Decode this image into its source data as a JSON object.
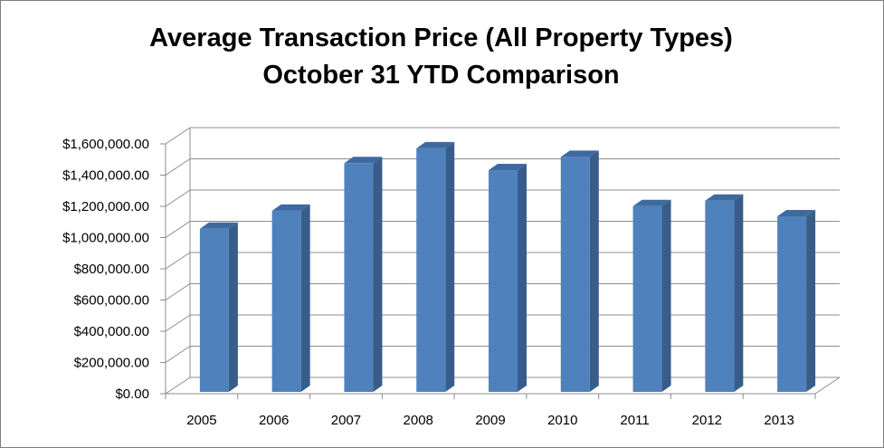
{
  "chart_data": {
    "type": "bar",
    "title": "Average Transaction Price (All Property Types)",
    "subtitle": "October 31 YTD Comparison",
    "categories": [
      "2005",
      "2006",
      "2007",
      "2008",
      "2009",
      "2010",
      "2011",
      "2012",
      "2013"
    ],
    "series": [
      {
        "values": [
          1045000,
          1160000,
          1465000,
          1560000,
          1420000,
          1505000,
          1190000,
          1225000,
          1125000
        ]
      }
    ],
    "ylim": [
      0,
      1600000
    ],
    "yticks": [
      0,
      200000,
      400000,
      600000,
      800000,
      1000000,
      1200000,
      1400000,
      1600000
    ],
    "ytick_labels": [
      "$0.00",
      "$200,000.00",
      "$400,000.00",
      "$600,000.00",
      "$800,000.00",
      "$1,000,000.00",
      "$1,200,000.00",
      "$1,400,000.00",
      "$1,600,000.00"
    ],
    "grid": true,
    "legend": "none",
    "style": "3d-column",
    "colors": {
      "bar_front": "#4f81bd",
      "bar_side": "#385d8a",
      "bar_top": "#3e6aa0",
      "grid": "#8c8c8c",
      "frame": "#7f7f7f"
    }
  }
}
